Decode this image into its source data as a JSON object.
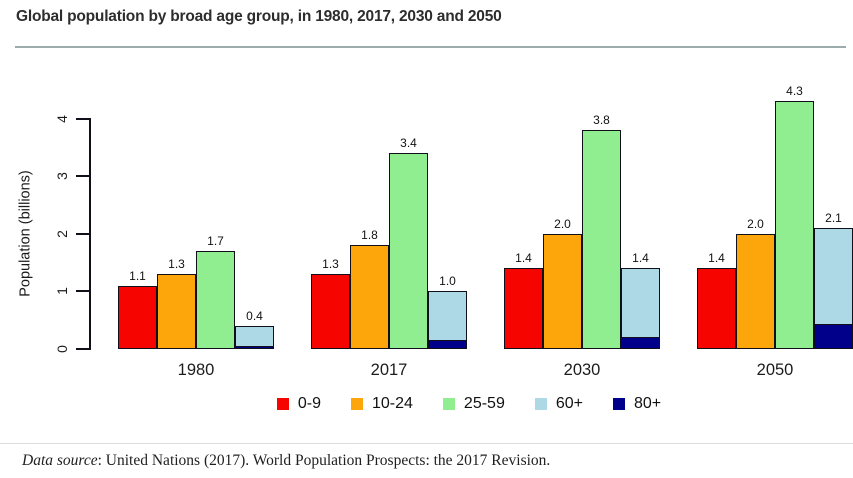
{
  "header": {
    "title": "Global population by broad age group, in 1980, 2017, 2030 and 2050",
    "rule_color": "#9cabab"
  },
  "chart_data": {
    "type": "bar",
    "title": "Global population by broad age group, in 1980, 2017, 2030 and 2050",
    "categories": [
      "1980",
      "2017",
      "2030",
      "2050"
    ],
    "series": [
      {
        "name": "0-9",
        "color": "#f50400",
        "values": [
          1.1,
          1.3,
          1.4,
          1.4
        ],
        "labels": [
          "1.1",
          "1.3",
          "1.4",
          "1.4"
        ]
      },
      {
        "name": "10-24",
        "color": "#fca60c",
        "values": [
          1.3,
          1.8,
          2.0,
          2.0
        ],
        "labels": [
          "1.3",
          "1.8",
          "2.0",
          "2.0"
        ]
      },
      {
        "name": "25-59",
        "color": "#90ee90",
        "values": [
          1.7,
          3.4,
          3.8,
          4.3
        ],
        "labels": [
          "1.7",
          "3.4",
          "3.8",
          "4.3"
        ]
      },
      {
        "name": "60+",
        "color": "#add8e6",
        "values": [
          0.4,
          1.0,
          1.4,
          2.1
        ],
        "labels": [
          "0.4",
          "1.0",
          "1.4",
          "2.1"
        ]
      },
      {
        "name": "80+",
        "color": "#00008b",
        "values": [
          0.05,
          0.15,
          0.2,
          0.43
        ],
        "labels": null,
        "overlay_on": "60+",
        "note": "unlabeled overlay drawn at base of 60+ bar; values estimated from bar heights"
      }
    ],
    "ylabel": "Population (billions)",
    "yticks": [
      0,
      1,
      2,
      3,
      4
    ],
    "ylim": [
      0,
      4.5
    ],
    "grid": false,
    "bar_border_color": "#10101a",
    "legend_position": "bottom"
  },
  "footer": {
    "source_label": "Data source",
    "source_rest": ": United Nations (2017). World Population Prospects: the 2017 Revision.",
    "rule_color": "#dcdcdc"
  }
}
